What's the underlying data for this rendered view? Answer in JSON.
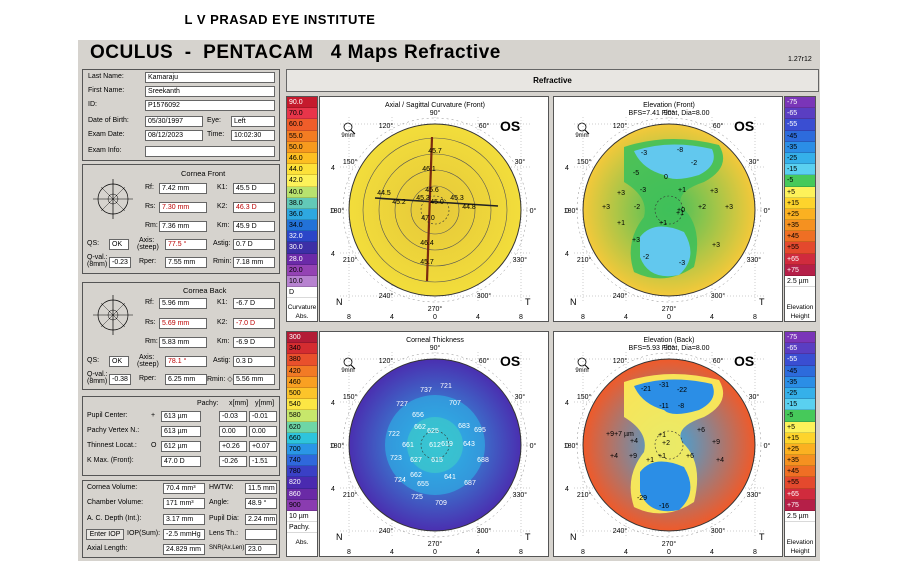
{
  "institute": "L V PRASAD EYE INSTITUTE",
  "app_title": "OCULUS  -  PENTACAM   4 Maps Refractive",
  "version": "1.27r12",
  "section_title": "Refractive",
  "patient": {
    "last_name_label": "Last Name:",
    "last_name": "Kamaraju",
    "first_name_label": "First Name:",
    "first_name": "Sreekanth",
    "id_label": "ID:",
    "id": "P1576092",
    "dob_label": "Date of Birth:",
    "dob": "05/30/1997",
    "eye_label": "Eye:",
    "eye": "Left",
    "exam_date_label": "Exam Date:",
    "exam_date": "08/12/2023",
    "time_label": "Time:",
    "time": "10:02:30",
    "exam_info_label": "Exam Info:",
    "exam_info": ""
  },
  "front": {
    "title": "Cornea Front",
    "rf_label": "Rf:",
    "rf": "7.42 mm",
    "k1_label": "K1:",
    "k1": "45.5 D",
    "rs_label": "Rs:",
    "rs": "7.30 mm",
    "k2_label": "K2:",
    "k2": "46.3 D",
    "rm_label": "Rm:",
    "rm": "7.36 mm",
    "km_label": "Km:",
    "km": "45.9 D",
    "qs_label": "QS:",
    "qs": "OK",
    "axis_label": "Axis:",
    "axis_sub": "(steep)",
    "axis": "77.5 °",
    "astig_label": "Astig:",
    "astig": "0.7 D",
    "qval_label": "Q-val.:",
    "qval_sub": "(8mm)",
    "qval": "-0.23",
    "rper_label": "Rper:",
    "rper": "7.55 mm",
    "rmin_label": "Rmin:",
    "rmin": "7.18 mm"
  },
  "back": {
    "title": "Cornea Back",
    "rf_label": "Rf:",
    "rf": "5.96 mm",
    "k1_label": "K1:",
    "k1": "-6.7 D",
    "rs_label": "Rs:",
    "rs": "5.69 mm",
    "k2_label": "K2:",
    "k2": "-7.0 D",
    "rm_label": "Rm:",
    "rm": "5.83 mm",
    "km_label": "Km:",
    "km": "-6.9 D",
    "qs_label": "QS:",
    "qs": "OK",
    "axis_label": "Axis:",
    "axis_sub": "(steep)",
    "axis": "78.1 °",
    "astig_label": "Astig:",
    "astig": "0.3 D",
    "qval_label": "Q-val.:",
    "qval_sub": "(8mm)",
    "qval": "-0.38",
    "rper_label": "Rper:",
    "rper": "6.25 mm",
    "rmin_label": "Rmin: ◇",
    "rmin": "5.56 mm"
  },
  "pachy": {
    "col_pachy": "Pachy:",
    "col_x": "x[mm]",
    "col_y": "y[mm]",
    "rows": [
      {
        "label": "Pupil Center:",
        "sym": "+",
        "pachy": "613 µm",
        "x": "-0.03",
        "y": "-0.01"
      },
      {
        "label": "Pachy Vertex N.:",
        "sym": "",
        "pachy": "613 µm",
        "x": "0.00",
        "y": "0.00"
      },
      {
        "label": "Thinnest Locat.:",
        "sym": "O",
        "pachy": "612 µm",
        "x": "+0.26",
        "y": "+0.07"
      },
      {
        "label": "K Max. (Front):",
        "sym": "",
        "pachy": "47.0 D",
        "x": "-0.26",
        "y": "-1.51"
      }
    ]
  },
  "volume": {
    "cv_label": "Cornea Volume:",
    "cv": "70.4 mm³",
    "hwtw_label": "HWTW:",
    "hwtw": "11.5 mm",
    "chv_label": "Chamber Volume:",
    "chv": "171 mm³",
    "angle_label": "Angle:",
    "angle": "48.9 °",
    "acd_label": "A. C. Depth (Int.):",
    "acd": "3.17 mm",
    "pupil_label": "Pupil Dia:",
    "pupil": "2.24 mm",
    "iop_btn": "Enter IOP",
    "iop_label": "IOP(Sum):",
    "iop": "-2.5 mmHg",
    "lens_label": "Lens Th.:",
    "lens": "",
    "al_label": "Axial Length:",
    "al": "24.829 mm",
    "snr_label": "SNR(Ax.Len):",
    "snr": "23.0"
  },
  "maps": {
    "axial": {
      "title": "Axial / Sagittal Curvature (Front)",
      "eye": "OS",
      "zone": "9mm",
      "nasal": "N",
      "temporal": "T",
      "values": [
        "45.7",
        "46.1",
        "45.6",
        "44.5",
        "45.2",
        "45.3",
        "45.0",
        "45.3",
        "44.8",
        "47.0",
        "46.4",
        "45.7"
      ],
      "axis_labels": [
        "90°",
        "120°",
        "60°",
        "150°",
        "30°",
        "180°",
        "0°",
        "210°",
        "330°",
        "240°",
        "300°",
        "270°"
      ],
      "xticks": [
        "8",
        "4",
        "0",
        "4",
        "8"
      ],
      "yticks": [
        "4",
        "0",
        "4"
      ]
    },
    "elev_front": {
      "title": "Elevation (Front)",
      "subtitle": "BFS=7.41 Float, Dia=8.00",
      "eye": "OS",
      "zone": "9mm",
      "nasal": "N",
      "temporal": "T",
      "values": [
        "-3",
        "-8",
        "-2",
        "-5",
        "0",
        "+3",
        "-3",
        "+1",
        "+3",
        "-2",
        "+2",
        "+3",
        "+3",
        "+1",
        "+1",
        "+1",
        "+3",
        "+3",
        "-2",
        "-3",
        "+0"
      ],
      "axis_labels": [
        "90°",
        "120°",
        "60°",
        "150°",
        "30°",
        "180°",
        "0°",
        "210°",
        "330°",
        "240°",
        "300°",
        "270°"
      ],
      "xticks": [
        "8",
        "4",
        "0",
        "4",
        "8"
      ],
      "yticks": [
        "4",
        "0",
        "4"
      ]
    },
    "pachy": {
      "title": "Corneal Thickness",
      "eye": "OS",
      "zone": "9mm",
      "nasal": "N",
      "temporal": "T",
      "values": [
        "737",
        "721",
        "727",
        "656",
        "707",
        "662",
        "625",
        "683",
        "695",
        "722",
        "661",
        "612",
        "619",
        "643",
        "723",
        "627",
        "615",
        "688",
        "662",
        "641",
        "724",
        "655",
        "687",
        "725",
        "709"
      ],
      "axis_labels": [
        "90°",
        "120°",
        "60°",
        "150°",
        "30°",
        "180°",
        "0°",
        "210°",
        "330°",
        "240°",
        "300°",
        "270°"
      ],
      "xticks": [
        "8",
        "4",
        "0",
        "4",
        "8"
      ],
      "yticks": [
        "4",
        "0",
        "4"
      ]
    },
    "elev_back": {
      "title": "Elevation (Back)",
      "subtitle": "BFS=5.93 Float, Dia=8.00",
      "eye": "OS",
      "zone": "9mm",
      "nasal": "N",
      "temporal": "T",
      "values": [
        "-21",
        "-31",
        "-22",
        "-11",
        "-8",
        "+9",
        "+4",
        "+7 µm",
        "+6",
        "+4",
        "+9",
        "+4",
        "+9",
        "+1",
        "+2",
        "+1",
        "+1",
        "+6",
        "-29",
        "-16"
      ],
      "axis_labels": [
        "90°",
        "120°",
        "60°",
        "150°",
        "30°",
        "180°",
        "0°",
        "210°",
        "330°",
        "240°",
        "300°",
        "270°"
      ],
      "xticks": [
        "8",
        "4",
        "0",
        "4",
        "8"
      ],
      "yticks": [
        "4",
        "0",
        "4"
      ]
    }
  },
  "scales": {
    "curv": {
      "values": [
        "90.0",
        "70.0",
        "60.0",
        "55.0",
        "50.0",
        "46.0",
        "44.0",
        "42.0",
        "40.0",
        "38.0",
        "36.0",
        "34.0",
        "32.0",
        "30.0",
        "28.0",
        "20.0",
        "10.0",
        "D"
      ],
      "colors": [
        "#c51a2d",
        "#e8354a",
        "#ef5d2a",
        "#f37c22",
        "#f79a1e",
        "#fdbf22",
        "#fde13a",
        "#fdf25a",
        "#b8e26e",
        "#62c9b7",
        "#2ea8e0",
        "#2272d8",
        "#2b46c8",
        "#3d2fa6",
        "#6b2aa8",
        "#9443b4",
        "#b782d0",
        "#ffffff"
      ],
      "caption1": "Curvature",
      "caption2": "Abs."
    },
    "efront": {
      "values": [
        "-75",
        "-65",
        "-55",
        "-45",
        "-35",
        "-25",
        "-15",
        "-5",
        "+5",
        "+15",
        "+25",
        "+35",
        "+45",
        "+55",
        "+65",
        "+75",
        "2.5 µm"
      ],
      "colors": [
        "#7a35b8",
        "#5a3ec2",
        "#3a4ed2",
        "#2d6bdc",
        "#2b8ee6",
        "#35b0ea",
        "#5ad0f0",
        "#46c95a",
        "#fdf25a",
        "#fdd42c",
        "#fbb121",
        "#f59120",
        "#ef6f24",
        "#e4492d",
        "#d02b3d",
        "#b51f48",
        "#ffffff"
      ],
      "caption1": "Elevation",
      "caption2": "Height"
    },
    "thick": {
      "values": [
        "300",
        "340",
        "380",
        "420",
        "460",
        "500",
        "540",
        "580",
        "620",
        "660",
        "700",
        "740",
        "780",
        "820",
        "860",
        "900",
        "10 µm",
        "Pachy."
      ],
      "colors": [
        "#b31c36",
        "#d42c30",
        "#e9502c",
        "#f27a25",
        "#f9a022",
        "#fcc42a",
        "#fce644",
        "#c7e76b",
        "#6ed6a6",
        "#2ec4dc",
        "#2a96e6",
        "#2f68dc",
        "#3a40c6",
        "#4a2ab0",
        "#6a2aa6",
        "#8a3cb0",
        "#ffffff",
        "#ffffff"
      ],
      "caption1": "Abs.",
      "caption2": ""
    },
    "eback": {
      "values": [
        "-75",
        "-65",
        "-55",
        "-45",
        "-35",
        "-25",
        "-15",
        "-5",
        "+5",
        "+15",
        "+25",
        "+35",
        "+45",
        "+55",
        "+65",
        "+75",
        "2.5 µm"
      ],
      "colors": [
        "#7a35b8",
        "#5a3ec2",
        "#3a4ed2",
        "#2d6bdc",
        "#2b8ee6",
        "#35b0ea",
        "#5ad0f0",
        "#46c95a",
        "#fdf25a",
        "#fdd42c",
        "#fbb121",
        "#f59120",
        "#ef6f24",
        "#e4492d",
        "#d02b3d",
        "#b51f48",
        "#ffffff"
      ],
      "caption1": "Elevation",
      "caption2": "Height"
    }
  }
}
